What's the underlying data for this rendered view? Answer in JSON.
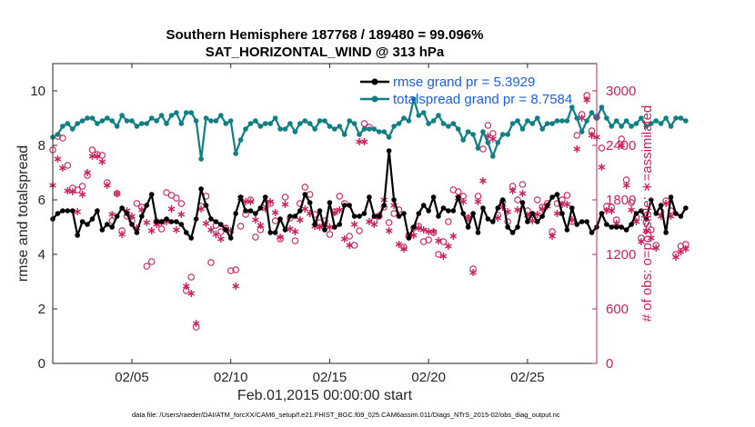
{
  "colors": {
    "rmse": "#000000",
    "spread": "#0f7f83",
    "obs": "#cc1f5c",
    "legend_text": "#1a5ee8",
    "axis": "#262626"
  },
  "chart_data": {
    "type": "line",
    "title": [
      "Southern Hemisphere 187768 / 189480 = 99.096%",
      "SAT_HORIZONTAL_WIND @ 313 hPa"
    ],
    "xlabel": "Feb.01,2015 00:00:00 start",
    "ylabel": "rmse and totalspread",
    "y2label": "# of obs: o=possible; ∗=assimilated",
    "xlim": [
      1,
      28.5
    ],
    "ylim": [
      0,
      11
    ],
    "y2lim": [
      0,
      3300
    ],
    "xticks": [
      5,
      10,
      15,
      20,
      25
    ],
    "xtick_labels": [
      "02/05",
      "02/10",
      "02/15",
      "02/20",
      "02/25"
    ],
    "yticks": [
      0,
      2,
      4,
      6,
      8,
      10
    ],
    "y2ticks": [
      0,
      600,
      1200,
      1800,
      2400,
      3000
    ],
    "legend_position": "top-right",
    "footnote": "data file: /Users/raeder/DAI/ATM_forcXX/CAM6_setup/f.e21.FHIST_BGC.f09_025.CAM6assim.011/Diags_NTrS_2015-02/obs_diag_output.nc",
    "x_start": 1.0,
    "x_step": 0.25,
    "series": [
      {
        "name": "rmse grand pr = 5.3929",
        "axis": "left",
        "marker": "filled-circle",
        "values": [
          5.3,
          5.5,
          5.6,
          5.6,
          5.6,
          4.7,
          5.2,
          5.1,
          5.3,
          5.6,
          4.9,
          5.1,
          5.0,
          5.4,
          5.7,
          5.5,
          5.1,
          4.8,
          5.4,
          5.8,
          6.2,
          5.2,
          5.2,
          5.3,
          5.2,
          5.2,
          5.1,
          4.8,
          4.6,
          5.3,
          6.4,
          5.8,
          5.3,
          5.2,
          5.1,
          4.9,
          4.6,
          5.5,
          6.1,
          5.6,
          5.6,
          5.5,
          5.7,
          6.1,
          4.8,
          4.8,
          5.3,
          4.9,
          5.4,
          5.4,
          5.6,
          6.2,
          5.9,
          5.1,
          5.6,
          4.9,
          5.9,
          5.0,
          5.1,
          5.8,
          5.8,
          5.4,
          5.4,
          5.5,
          6.1,
          5.4,
          5.4,
          5.8,
          7.8,
          6.0,
          5.4,
          5.5,
          4.6,
          5.0,
          5.5,
          5.8,
          5.6,
          6.1,
          5.4,
          5.7,
          5.6,
          5.6,
          6.1,
          5.5,
          5.0,
          5.5,
          4.8,
          5.7,
          5.3,
          5.2,
          5.7,
          6.0,
          5.0,
          4.8,
          5.0,
          5.9,
          5.2,
          5.5,
          5.2,
          5.4,
          5.8,
          6.1,
          6.2,
          5.5,
          4.9,
          5.7,
          5.1,
          5.2,
          5.2,
          4.8,
          5.0,
          5.5,
          5.1,
          5.0,
          5.0,
          5.0,
          4.9,
          5.1,
          5.5,
          5.6,
          5.3,
          6.0,
          5.5,
          5.8,
          4.8,
          6.1,
          5.5,
          5.4,
          5.7
        ]
      },
      {
        "name": "totalspread grand pr = 8.7584",
        "axis": "left",
        "marker": "filled-circle",
        "values": [
          8.3,
          8.4,
          8.7,
          8.8,
          8.6,
          8.8,
          8.9,
          9.0,
          9.0,
          8.8,
          8.9,
          9.0,
          8.9,
          8.7,
          9.1,
          8.9,
          8.9,
          8.7,
          8.8,
          8.8,
          9.0,
          8.9,
          9.1,
          8.8,
          9.1,
          9.2,
          8.8,
          9.2,
          9.2,
          8.9,
          7.5,
          9.0,
          8.9,
          8.9,
          9.1,
          8.8,
          8.9,
          7.7,
          8.2,
          8.6,
          8.8,
          8.9,
          8.7,
          8.8,
          8.8,
          9.0,
          8.6,
          8.6,
          8.8,
          8.5,
          8.8,
          8.9,
          8.8,
          8.6,
          8.9,
          8.9,
          8.7,
          8.6,
          8.7,
          8.4,
          8.9,
          8.8,
          8.4,
          8.6,
          8.6,
          8.6,
          8.5,
          8.5,
          8.3,
          8.7,
          8.8,
          9.0,
          8.9,
          9.7,
          9.1,
          9.2,
          8.8,
          8.9,
          9.1,
          8.8,
          8.7,
          8.8,
          8.6,
          8.2,
          8.5,
          8.4,
          7.9,
          8.5,
          8.1,
          7.6,
          8.1,
          8.4,
          8.4,
          8.8,
          8.9,
          8.6,
          8.9,
          8.8,
          9.0,
          8.6,
          8.8,
          8.8,
          8.9,
          8.9,
          8.9,
          9.4,
          9.0,
          8.5,
          8.9,
          9.2,
          9.0,
          9.4,
          9.0,
          8.7,
          8.9,
          8.7,
          8.9,
          8.7,
          8.8,
          9.0,
          8.7,
          8.8,
          8.9,
          8.8,
          9.0,
          8.7,
          9.0,
          9.0,
          8.9
        ]
      },
      {
        "name": "obs possible",
        "axis": "right",
        "marker": "circle",
        "values": [
          2350,
          2500,
          2480,
          2180,
          1930,
          1910,
          1950,
          2070,
          2350,
          2300,
          2290,
          1990,
          1570,
          1870,
          1460,
          1620,
          1570,
          1760,
          1720,
          1070,
          1120,
          1560,
          1480,
          1880,
          1850,
          1820,
          1760,
          800,
          950,
          400,
          1730,
          1840,
          1110,
          1520,
          1450,
          1490,
          1020,
          1030,
          1510,
          1640,
          1800,
          1390,
          1470,
          1760,
          1760,
          1570,
          1370,
          1830,
          1600,
          1350,
          1760,
          1940,
          1860,
          1640,
          1550,
          1570,
          1420,
          1670,
          1840,
          1760,
          1400,
          1300,
          1460,
          2640,
          2600,
          1570,
          1620,
          1720,
          1550,
          1650,
          1690,
          1280,
          1400,
          1490,
          1510,
          1340,
          1360,
          1440,
          1200,
          1340,
          1560,
          1910,
          1890,
          1840,
          1600,
          1040,
          1840,
          2360,
          2620,
          2530,
          1630,
          1780,
          1560,
          1950,
          1800,
          1970,
          1680,
          1640,
          1800,
          1720,
          1760,
          1450,
          1760,
          1800,
          1850,
          1560,
          2510,
          2740,
          2950,
          2560,
          2710,
          2370,
          1730,
          1720,
          1580,
          2470,
          2020,
          1770,
          1610,
          1380,
          1550,
          1470,
          1300,
          1670,
          1790,
          1680,
          1200,
          1290,
          1310
        ]
      },
      {
        "name": "obs assimilated",
        "axis": "right",
        "marker": "asterisk",
        "values": [
          1960,
          2250,
          2150,
          1900,
          1890,
          1670,
          1860,
          2100,
          2280,
          2280,
          2220,
          1960,
          1640,
          1870,
          1420,
          1680,
          1620,
          1490,
          1690,
          1550,
          1460,
          1530,
          1550,
          1560,
          1700,
          1470,
          1640,
          850,
          770,
          440,
          1700,
          1540,
          1470,
          1420,
          1370,
          1480,
          1460,
          850,
          1820,
          1780,
          1780,
          1580,
          1520,
          1700,
          1780,
          1660,
          1390,
          1750,
          1480,
          1450,
          1580,
          1700,
          1650,
          1510,
          1500,
          1520,
          1500,
          1660,
          1690,
          1370,
          1300,
          1530,
          2440,
          2440,
          1560,
          1530,
          1630,
          1800,
          1460,
          1740,
          1310,
          1260,
          1410,
          1410,
          1490,
          1470,
          1450,
          1450,
          1350,
          1180,
          1290,
          1400,
          1820,
          1780,
          1600,
          1000,
          1780,
          2010,
          2500,
          2470,
          1600,
          1720,
          1670,
          1900,
          1690,
          1870,
          1630,
          1570,
          1640,
          1700,
          1730,
          1400,
          1650,
          1750,
          1750,
          1580,
          2360,
          2700,
          2900,
          2510,
          2490,
          2160,
          1680,
          1680,
          1540,
          2400,
          1960,
          1690,
          1560,
          1340,
          1460,
          1380,
          1270,
          1620,
          1760,
          1620,
          1170,
          1230,
          1260
        ]
      }
    ]
  }
}
